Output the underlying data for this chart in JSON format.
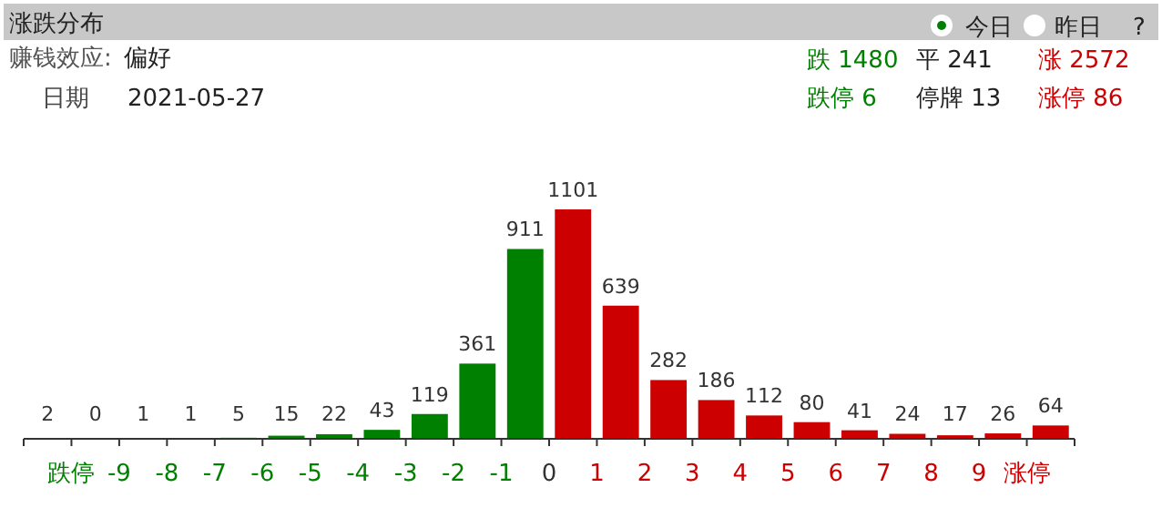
{
  "chart_data": {
    "type": "bar",
    "title": "涨跌分布",
    "annotations": [
      "今日",
      "昨日",
      "?",
      "赚钱效应:",
      "偏好",
      "日期",
      "2021-05-27",
      "跌 1480",
      "平 241",
      "涨 2572",
      "跌停 6",
      "停牌 13",
      "涨停 86"
    ],
    "x": [
      -10.5,
      -9.5,
      -8.5,
      -7.5,
      -6.5,
      -5.5,
      -4.5,
      -3.5,
      -2.5,
      -1.5,
      -0.5,
      0.5,
      1.5,
      2.5,
      3.5,
      4.5,
      5.5,
      6.5,
      7.5,
      8.5,
      9.5,
      10.5
    ],
    "values": [
      2,
      0,
      1,
      1,
      5,
      15,
      22,
      43,
      119,
      361,
      911,
      1101,
      639,
      282,
      186,
      112,
      80,
      41,
      24,
      17,
      26,
      64
    ],
    "colors": [
      "#008000",
      "#008000",
      "#008000",
      "#008000",
      "#008000",
      "#008000",
      "#008000",
      "#008000",
      "#008000",
      "#008000",
      "#008000",
      "#cc0000",
      "#cc0000",
      "#cc0000",
      "#cc0000",
      "#cc0000",
      "#cc0000",
      "#cc0000",
      "#cc0000",
      "#cc0000",
      "#cc0000",
      "#cc0000"
    ],
    "xlim": [
      -11,
      11
    ],
    "xticks": [
      {
        "value": -11,
        "label": null
      },
      {
        "value": -10,
        "label": "跌停"
      },
      -9,
      -8,
      -7,
      -6,
      -5,
      -4,
      -3,
      -2,
      -1,
      0,
      1,
      2,
      3,
      4,
      5,
      6,
      7,
      8,
      9,
      {
        "value": 10,
        "label": "涨停"
      },
      {
        "value": 11,
        "label": null
      }
    ],
    "data_labels": true
  }
}
